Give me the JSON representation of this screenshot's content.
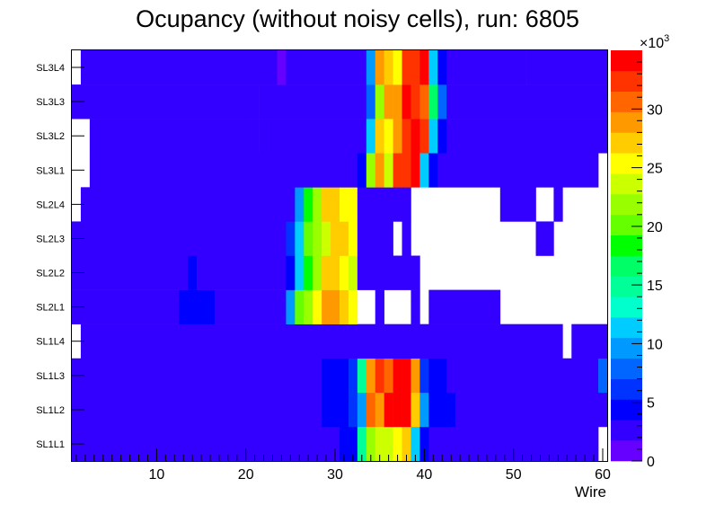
{
  "chart_data": {
    "type": "heatmap",
    "title": "Ocupancy (without noisy cells), run: 6805",
    "xlabel": "Wire",
    "ylabel": "",
    "x_range": [
      0.5,
      60.5
    ],
    "x_ticks": [
      "10",
      "20",
      "30",
      "40",
      "50",
      "60"
    ],
    "layers": [
      "SL1L1",
      "SL1L2",
      "SL1L3",
      "SL1L4",
      "SL2L1",
      "SL2L2",
      "SL2L3",
      "SL2L4",
      "SL3L1",
      "SL3L2",
      "SL3L3",
      "SL3L4"
    ],
    "z_range": [
      0,
      35000
    ],
    "z_ticks": [
      "0",
      "5",
      "10",
      "15",
      "20",
      "25",
      "30"
    ],
    "z_exponent": "×10",
    "z_exponent_power": "3",
    "palette": [
      "#6600ff",
      "#3300ff",
      "#0000ff",
      "#0033ff",
      "#0066ff",
      "#0099ff",
      "#00ccff",
      "#00ffcc",
      "#00ff99",
      "#00ff66",
      "#00ff00",
      "#66ff00",
      "#99ff00",
      "#ccff00",
      "#ffff00",
      "#ffcc00",
      "#ff9900",
      "#ff6600",
      "#ff3300",
      "#ff0000"
    ],
    "rows": {
      "SL3L4": [
        [
          1,
          1,
          0
        ],
        [
          2,
          23,
          2200
        ],
        [
          24,
          24,
          1500
        ],
        [
          25,
          25,
          2200
        ],
        [
          26,
          33,
          3000
        ],
        [
          34,
          34,
          9000
        ],
        [
          35,
          35,
          28000
        ],
        [
          36,
          36,
          27500
        ],
        [
          37,
          37,
          26000
        ],
        [
          38,
          38,
          33000
        ],
        [
          39,
          39,
          32500
        ],
        [
          40,
          40,
          34000
        ],
        [
          41,
          41,
          12000
        ],
        [
          42,
          42,
          5000
        ],
        [
          43,
          51,
          3000
        ],
        [
          52,
          53,
          2000
        ],
        [
          54,
          60,
          2200
        ]
      ],
      "SL3L3": [
        [
          1,
          21,
          2100
        ],
        [
          22,
          33,
          3000
        ],
        [
          34,
          34,
          8500
        ],
        [
          35,
          35,
          22000
        ],
        [
          36,
          36,
          28000
        ],
        [
          37,
          37,
          28500
        ],
        [
          38,
          38,
          33500
        ],
        [
          39,
          39,
          33000
        ],
        [
          40,
          40,
          31000
        ],
        [
          41,
          41,
          17000
        ],
        [
          42,
          42,
          7000
        ],
        [
          43,
          45,
          3000
        ],
        [
          46,
          46,
          2200
        ],
        [
          47,
          60,
          2800
        ]
      ],
      "SL3L2": [
        [
          1,
          2,
          0
        ],
        [
          3,
          20,
          2200
        ],
        [
          21,
          21,
          3000
        ],
        [
          22,
          22,
          2200
        ],
        [
          23,
          33,
          3000
        ],
        [
          34,
          34,
          11000
        ],
        [
          35,
          35,
          27000
        ],
        [
          36,
          36,
          26000
        ],
        [
          37,
          37,
          28000
        ],
        [
          38,
          38,
          33000
        ],
        [
          39,
          39,
          33500
        ],
        [
          40,
          40,
          33000
        ],
        [
          41,
          41,
          11000
        ],
        [
          42,
          42,
          3500
        ],
        [
          43,
          53,
          3000
        ],
        [
          54,
          60,
          2200
        ]
      ],
      "SL3L1": [
        [
          1,
          2,
          0
        ],
        [
          3,
          19,
          2200
        ],
        [
          20,
          32,
          3000
        ],
        [
          33,
          33,
          4500
        ],
        [
          34,
          34,
          22000
        ],
        [
          35,
          35,
          29000
        ],
        [
          36,
          36,
          24000
        ],
        [
          37,
          37,
          33000
        ],
        [
          38,
          38,
          32500
        ],
        [
          39,
          39,
          33500
        ],
        [
          40,
          40,
          11000
        ],
        [
          41,
          41,
          4500
        ],
        [
          42,
          53,
          3000
        ],
        [
          54,
          59,
          2200
        ],
        [
          60,
          60,
          0
        ]
      ],
      "SL2L4": [
        [
          1,
          1,
          0
        ],
        [
          2,
          25,
          3000
        ],
        [
          26,
          26,
          9000
        ],
        [
          27,
          27,
          17500
        ],
        [
          28,
          28,
          21500
        ],
        [
          29,
          30,
          27000
        ],
        [
          31,
          31,
          26000
        ],
        [
          32,
          32,
          25000
        ],
        [
          33,
          38,
          2200
        ],
        [
          39,
          48,
          0
        ],
        [
          49,
          52,
          2200
        ],
        [
          53,
          54,
          0
        ],
        [
          55,
          55,
          2200
        ],
        [
          56,
          60,
          0
        ]
      ],
      "SL2L3": [
        [
          1,
          24,
          3000
        ],
        [
          25,
          25,
          6000
        ],
        [
          26,
          26,
          11000
        ],
        [
          27,
          27,
          20000
        ],
        [
          28,
          28,
          22500
        ],
        [
          29,
          29,
          24000
        ],
        [
          30,
          31,
          27000
        ],
        [
          32,
          32,
          26000
        ],
        [
          33,
          36,
          2200
        ],
        [
          37,
          37,
          0
        ],
        [
          38,
          38,
          2200
        ],
        [
          39,
          52,
          0
        ],
        [
          53,
          54,
          2200
        ],
        [
          55,
          55,
          0
        ],
        [
          56,
          60,
          0
        ]
      ],
      "SL2L2": [
        [
          1,
          13,
          3000
        ],
        [
          14,
          14,
          4000
        ],
        [
          15,
          24,
          3000
        ],
        [
          25,
          25,
          4500
        ],
        [
          26,
          26,
          12000
        ],
        [
          27,
          27,
          18500
        ],
        [
          28,
          28,
          22000
        ],
        [
          29,
          30,
          27000
        ],
        [
          31,
          31,
          25000
        ],
        [
          32,
          32,
          24000
        ],
        [
          33,
          39,
          2200
        ],
        [
          40,
          52,
          0
        ],
        [
          53,
          60,
          0
        ]
      ],
      "SL2L1": [
        [
          1,
          12,
          3000
        ],
        [
          13,
          16,
          4500
        ],
        [
          17,
          24,
          3000
        ],
        [
          25,
          25,
          9000
        ],
        [
          26,
          26,
          19500
        ],
        [
          27,
          27,
          21500
        ],
        [
          28,
          28,
          26000
        ],
        [
          29,
          30,
          28000
        ],
        [
          31,
          31,
          26500
        ],
        [
          32,
          32,
          25000
        ],
        [
          33,
          34,
          0
        ],
        [
          35,
          35,
          2200
        ],
        [
          36,
          38,
          0
        ],
        [
          39,
          39,
          2200
        ],
        [
          40,
          40,
          0
        ],
        [
          41,
          48,
          2200
        ],
        [
          49,
          55,
          0
        ],
        [
          56,
          60,
          0
        ]
      ],
      "SL1L4": [
        [
          1,
          1,
          0
        ],
        [
          2,
          55,
          2200
        ],
        [
          56,
          56,
          0
        ],
        [
          57,
          60,
          2200
        ]
      ],
      "SL1L3": [
        [
          1,
          28,
          3000
        ],
        [
          29,
          31,
          4000
        ],
        [
          32,
          32,
          6000
        ],
        [
          33,
          33,
          15000
        ],
        [
          34,
          34,
          28000
        ],
        [
          35,
          35,
          32000
        ],
        [
          36,
          36,
          30000
        ],
        [
          37,
          37,
          34000
        ],
        [
          38,
          38,
          35000
        ],
        [
          39,
          39,
          28000
        ],
        [
          40,
          40,
          6000
        ],
        [
          41,
          41,
          4500
        ],
        [
          42,
          42,
          3500
        ],
        [
          43,
          59,
          3000
        ],
        [
          60,
          60,
          8000
        ]
      ],
      "SL1L2": [
        [
          1,
          28,
          3000
        ],
        [
          29,
          30,
          4000
        ],
        [
          31,
          31,
          5000
        ],
        [
          32,
          32,
          6000
        ],
        [
          33,
          33,
          10000
        ],
        [
          34,
          34,
          31000
        ],
        [
          35,
          35,
          28000
        ],
        [
          36,
          36,
          34000
        ],
        [
          37,
          37,
          34000
        ],
        [
          38,
          38,
          34500
        ],
        [
          39,
          39,
          27000
        ],
        [
          40,
          40,
          9000
        ],
        [
          41,
          41,
          5000
        ],
        [
          42,
          43,
          4000
        ],
        [
          44,
          60,
          3000
        ]
      ],
      "SL1L1": [
        [
          1,
          30,
          3000
        ],
        [
          31,
          31,
          4000
        ],
        [
          32,
          32,
          4500
        ],
        [
          33,
          33,
          14000
        ],
        [
          34,
          34,
          21500
        ],
        [
          35,
          36,
          23000
        ],
        [
          37,
          37,
          25500
        ],
        [
          38,
          38,
          26500
        ],
        [
          39,
          39,
          11000
        ],
        [
          40,
          40,
          4000
        ],
        [
          41,
          59,
          3000
        ],
        [
          60,
          60,
          0
        ]
      ]
    }
  }
}
